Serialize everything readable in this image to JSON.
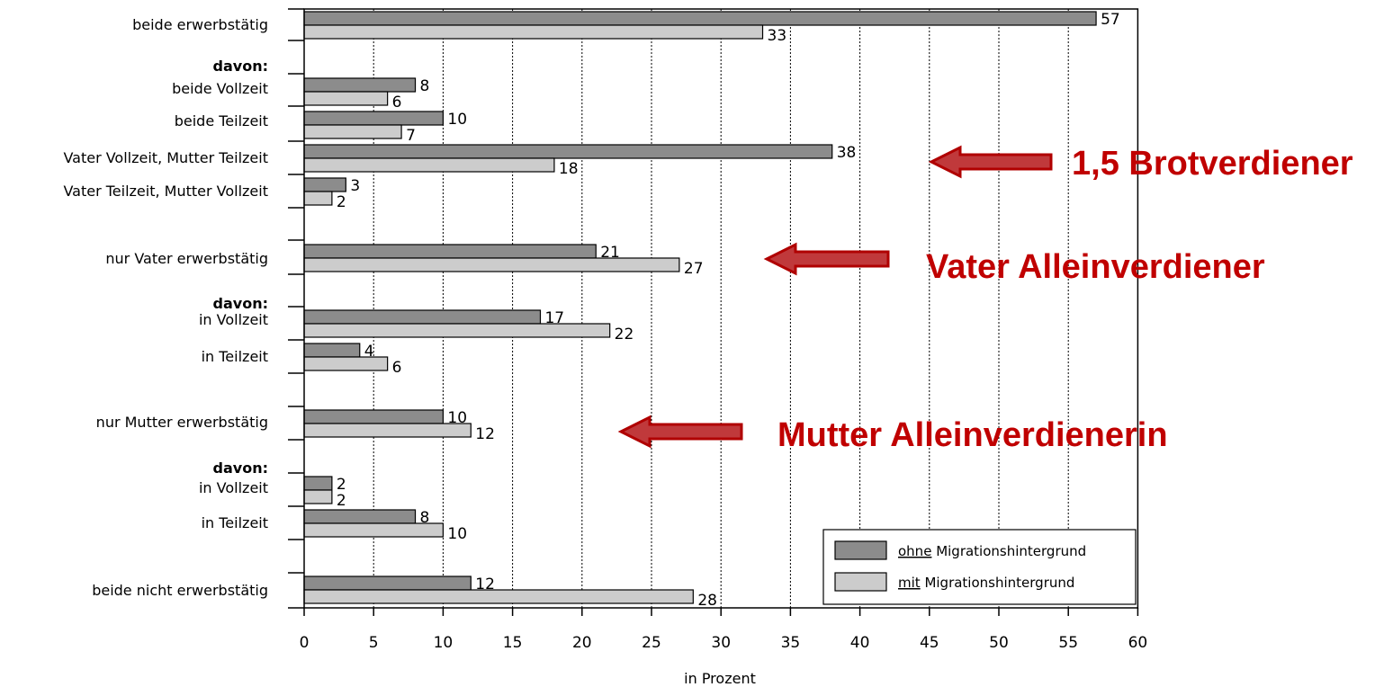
{
  "chart_data": {
    "type": "bar",
    "orientation": "horizontal",
    "xlabel": "in Prozent",
    "xlim": [
      0,
      60
    ],
    "xticks": [
      0,
      5,
      10,
      15,
      20,
      25,
      30,
      35,
      40,
      45,
      50,
      55,
      60
    ],
    "grid": "vertical dotted",
    "categories": [
      "beide erwerbstätig",
      "beide Vollzeit",
      "beide Teilzeit",
      "Vater Vollzeit, Mutter Teilzeit",
      "Vater Teilzeit, Mutter Vollzeit",
      "nur Vater erwerbstätig",
      "in Vollzeit",
      "in Teilzeit",
      "nur Mutter erwerbstätig",
      "in Vollzeit",
      "in Teilzeit",
      "beide nicht erwerbstätig"
    ],
    "subheaders": [
      "davon:",
      "davon:",
      "davon:"
    ],
    "series": [
      {
        "name": "ohne Migrationshintergrund",
        "underlined": "ohne",
        "rest": " Migrationshintergrund",
        "color": "#8c8c8c",
        "values": [
          57,
          8,
          10,
          38,
          3,
          21,
          17,
          4,
          10,
          2,
          8,
          12
        ]
      },
      {
        "name": "mit Migrationshintergrund",
        "underlined": "mit",
        "rest": " Migrationshintergrund",
        "color": "#cccccc",
        "values": [
          33,
          6,
          7,
          18,
          2,
          27,
          22,
          6,
          12,
          2,
          10,
          28
        ]
      }
    ],
    "legend_position": "bottom-right",
    "annotations": [
      {
        "text": "1,5 Brotverdiener",
        "color": "#c00000"
      },
      {
        "text": "Vater Alleinverdiener",
        "color": "#c00000"
      },
      {
        "text": "Mutter Alleinverdienerin",
        "color": "#c00000"
      }
    ]
  }
}
